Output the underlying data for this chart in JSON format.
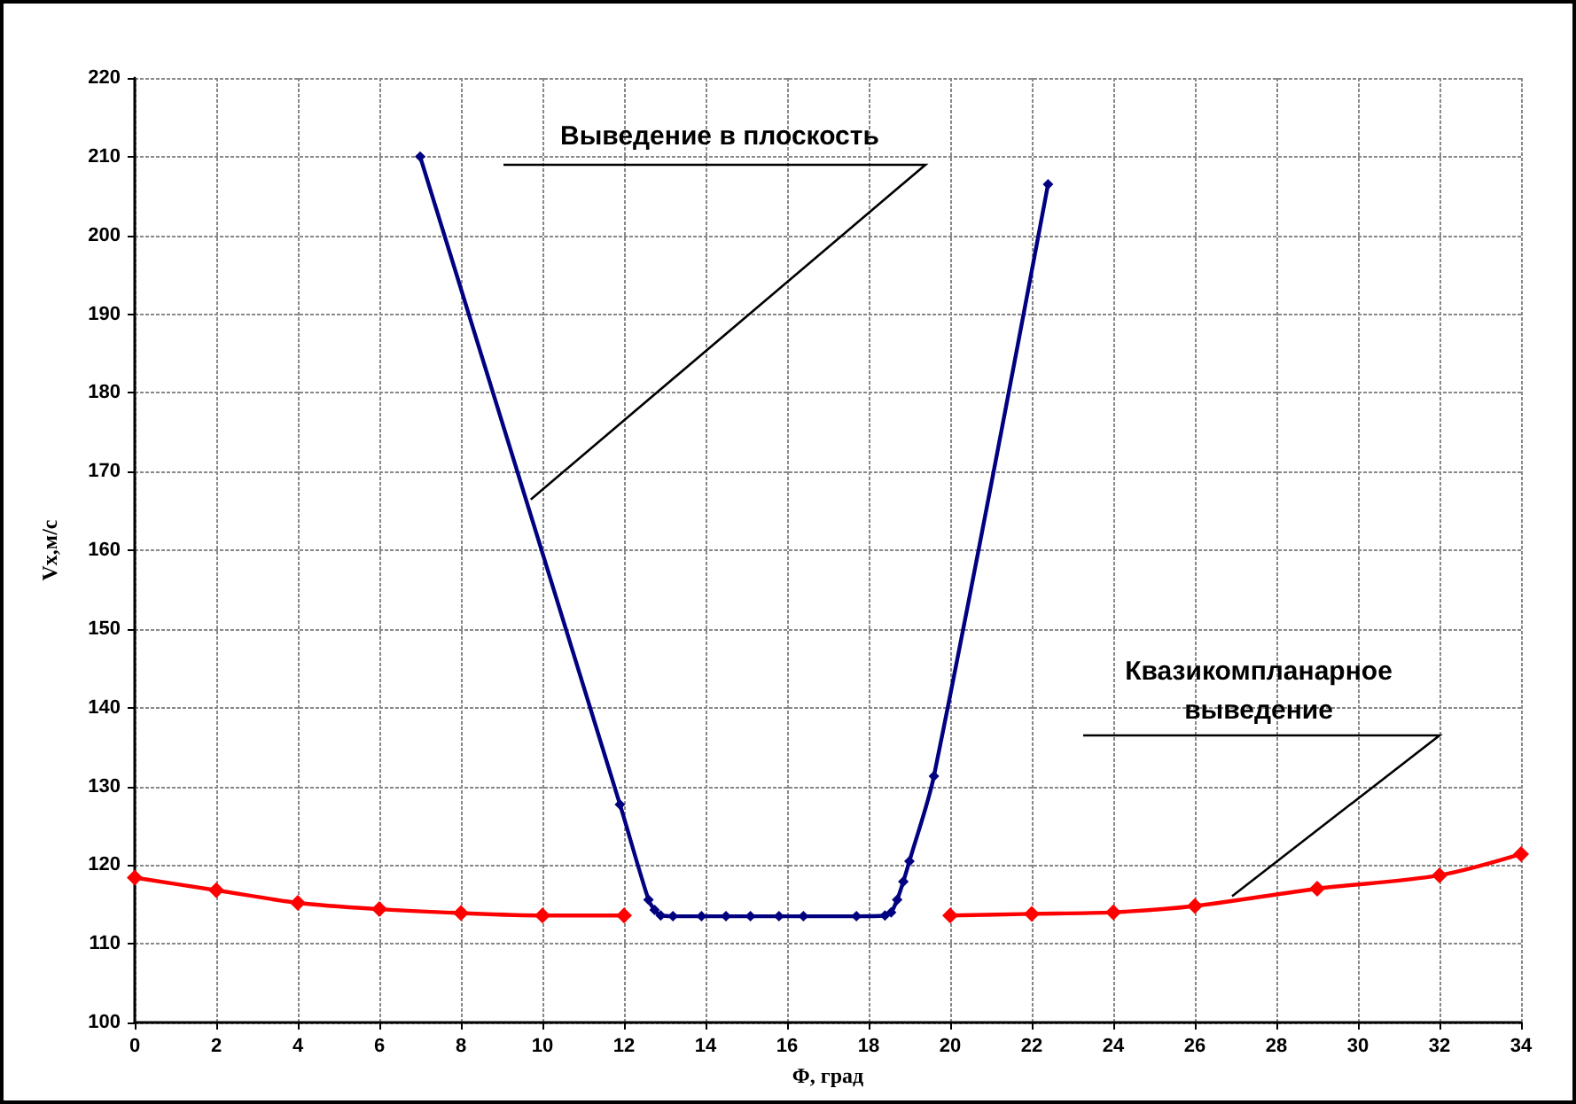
{
  "chart_data": {
    "type": "line",
    "xlabel": "Φ, град",
    "ylabel": "Vx,м/с",
    "xlim": [
      0,
      34
    ],
    "xticks": [
      0,
      2,
      4,
      6,
      8,
      10,
      12,
      14,
      16,
      18,
      20,
      22,
      24,
      26,
      28,
      30,
      32,
      34
    ],
    "ylim": [
      100,
      220
    ],
    "yticks": [
      100,
      110,
      120,
      130,
      140,
      150,
      160,
      170,
      180,
      190,
      200,
      210,
      220
    ],
    "grid": true,
    "marker": "diamond",
    "line_style": "solid",
    "annotations": [
      {
        "text": "Выведение в плоскость",
        "x": 9.8,
        "y": 166
      },
      {
        "text": "Квазикомпланарное выведение",
        "x": 27,
        "y": 115.6
      }
    ],
    "series": [
      {
        "color": "#000080",
        "x": [
          7,
          11.9,
          12.6,
          12.75,
          12.9,
          13.2,
          13.9,
          14.5,
          15.1,
          15.8,
          16.4,
          17.7,
          18.4,
          18.55,
          18.7,
          18.85,
          19.0,
          19.6,
          22.4
        ],
        "values": [
          210,
          127.7,
          115.6,
          114.3,
          113.6,
          113.5,
          113.5,
          113.5,
          113.5,
          113.5,
          113.5,
          113.5,
          113.6,
          114.0,
          115.6,
          117.9,
          120.5,
          131.3,
          206.5
        ]
      },
      {
        "color": "#ff0000",
        "x": [
          0,
          2,
          4,
          6,
          8,
          10,
          12,
          16,
          20,
          22,
          24,
          26,
          29,
          32,
          34
        ],
        "values": [
          118.4,
          116.8,
          115.2,
          114.4,
          113.9,
          113.6,
          113.6,
          null,
          113.6,
          113.8,
          114.0,
          114.8,
          117.0,
          118.7,
          121.4
        ]
      }
    ]
  }
}
